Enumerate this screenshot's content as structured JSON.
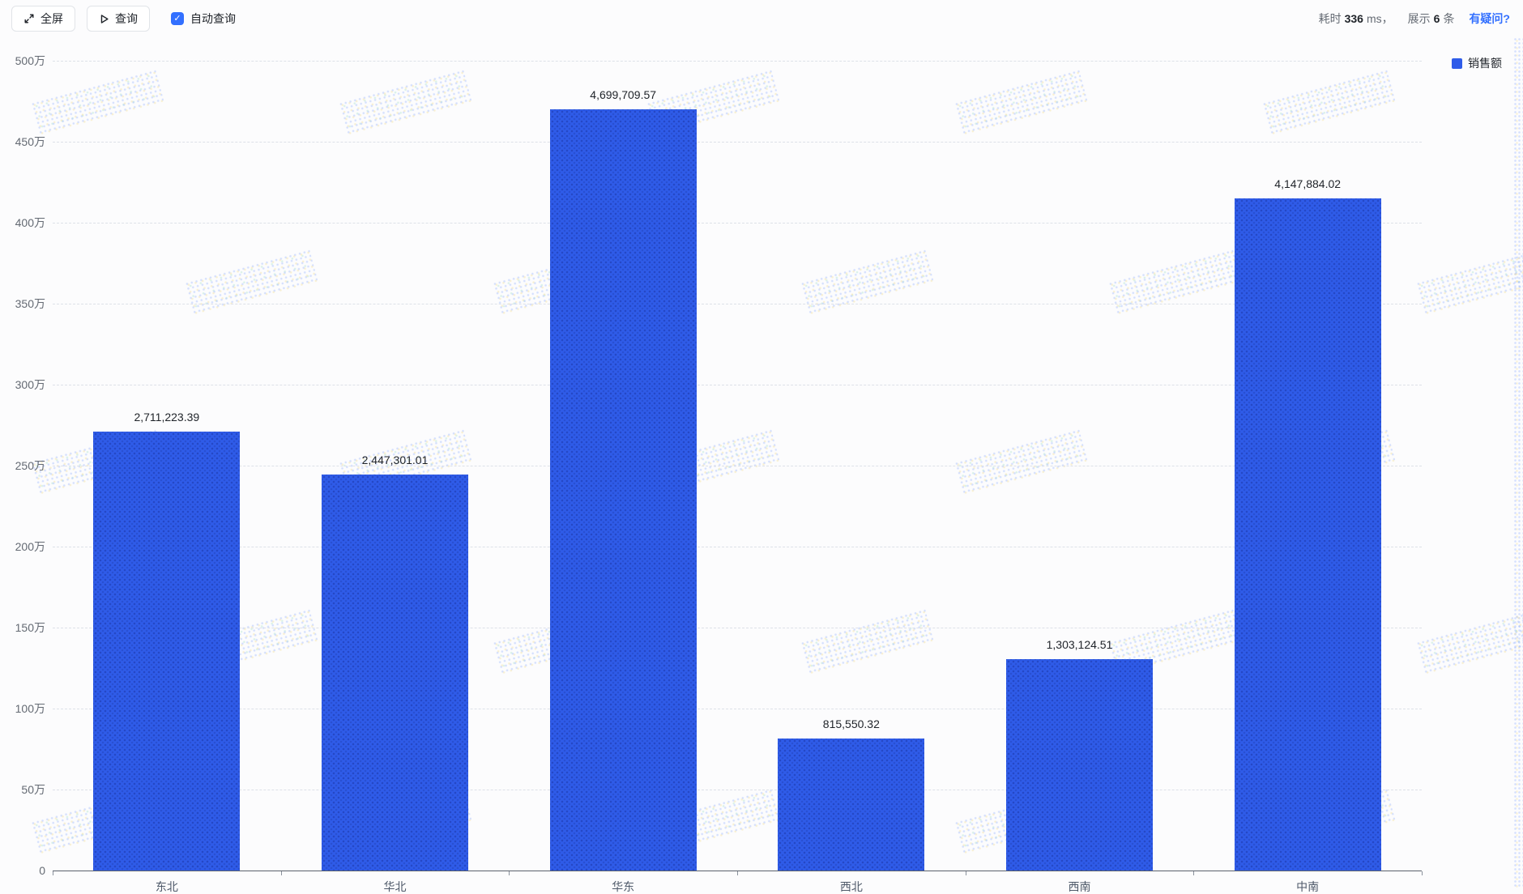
{
  "toolbar": {
    "fullscreen_label": "全屏",
    "query_label": "查询",
    "auto_query_label": "自动查询",
    "auto_query_checked": true,
    "stats": {
      "elapsed_label": "耗时",
      "elapsed_value": "336",
      "elapsed_suffix": "ms，",
      "rows_label": "展示",
      "rows_value": "6",
      "rows_suffix": "条"
    },
    "question_link": "有疑问?"
  },
  "legend": {
    "label": "销售额",
    "color": "#2f5ce9",
    "position": "top-right"
  },
  "chart_data": {
    "type": "bar",
    "title": "",
    "xlabel": "",
    "ylabel": "",
    "series_name": "销售额",
    "categories": [
      "东北",
      "华北",
      "华东",
      "西北",
      "西南",
      "中南"
    ],
    "values": [
      2711223.39,
      2447301.01,
      4699709.57,
      815550.32,
      1303124.51,
      4147884.02
    ],
    "value_labels": [
      "2,711,223.39",
      "2,447,301.01",
      "4,699,709.57",
      "815,550.32",
      "1,303,124.51",
      "4,147,884.02"
    ],
    "ylim": [
      0,
      5000000
    ],
    "y_ticks": [
      "500万",
      "450万",
      "400万",
      "350万",
      "300万",
      "250万",
      "200万",
      "150万",
      "100万",
      "50万",
      "0"
    ],
    "y_tick_values": [
      5000000,
      4500000,
      4000000,
      3500000,
      3000000,
      2500000,
      2000000,
      1500000,
      1000000,
      500000,
      0
    ],
    "grid": "horizontal-dashed",
    "bar_color": "#2f5ce9",
    "legend_position": "top-right"
  }
}
